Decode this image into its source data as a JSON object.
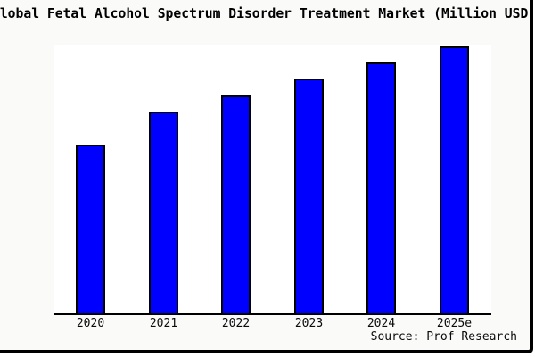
{
  "title": "Global Fetal Alcohol Spectrum Disorder Treatment Market (Million USD)",
  "source_note": "Source: Prof Research",
  "colors": {
    "bar_fill": "#0000fe",
    "bar_border": "#000000",
    "canvas_background": "#fafaf9",
    "plot_background": "#ffffff",
    "axis_line": "#000000",
    "text": "#000000",
    "frame_shadow": "#000000"
  },
  "chart_data": {
    "type": "bar",
    "title": "Global Fetal Alcohol Spectrum Disorder Treatment Market (Million USD)",
    "categories": [
      "2020",
      "2021",
      "2022",
      "2023",
      "2024",
      "2025e"
    ],
    "values_pct_of_max": [
      63.3,
      75.7,
      81.7,
      88.0,
      94.0,
      100
    ],
    "value_axis_note": "no y-axis ticks, labels, gridlines or data labels are shown; values are relative estimates with 2025e = 100",
    "xlabel": "",
    "ylabel": "",
    "gridlines": false,
    "legend": null,
    "y_axis": {
      "ticks_visible": false,
      "labels_visible": false
    },
    "source_note": "Source: Prof Research"
  }
}
